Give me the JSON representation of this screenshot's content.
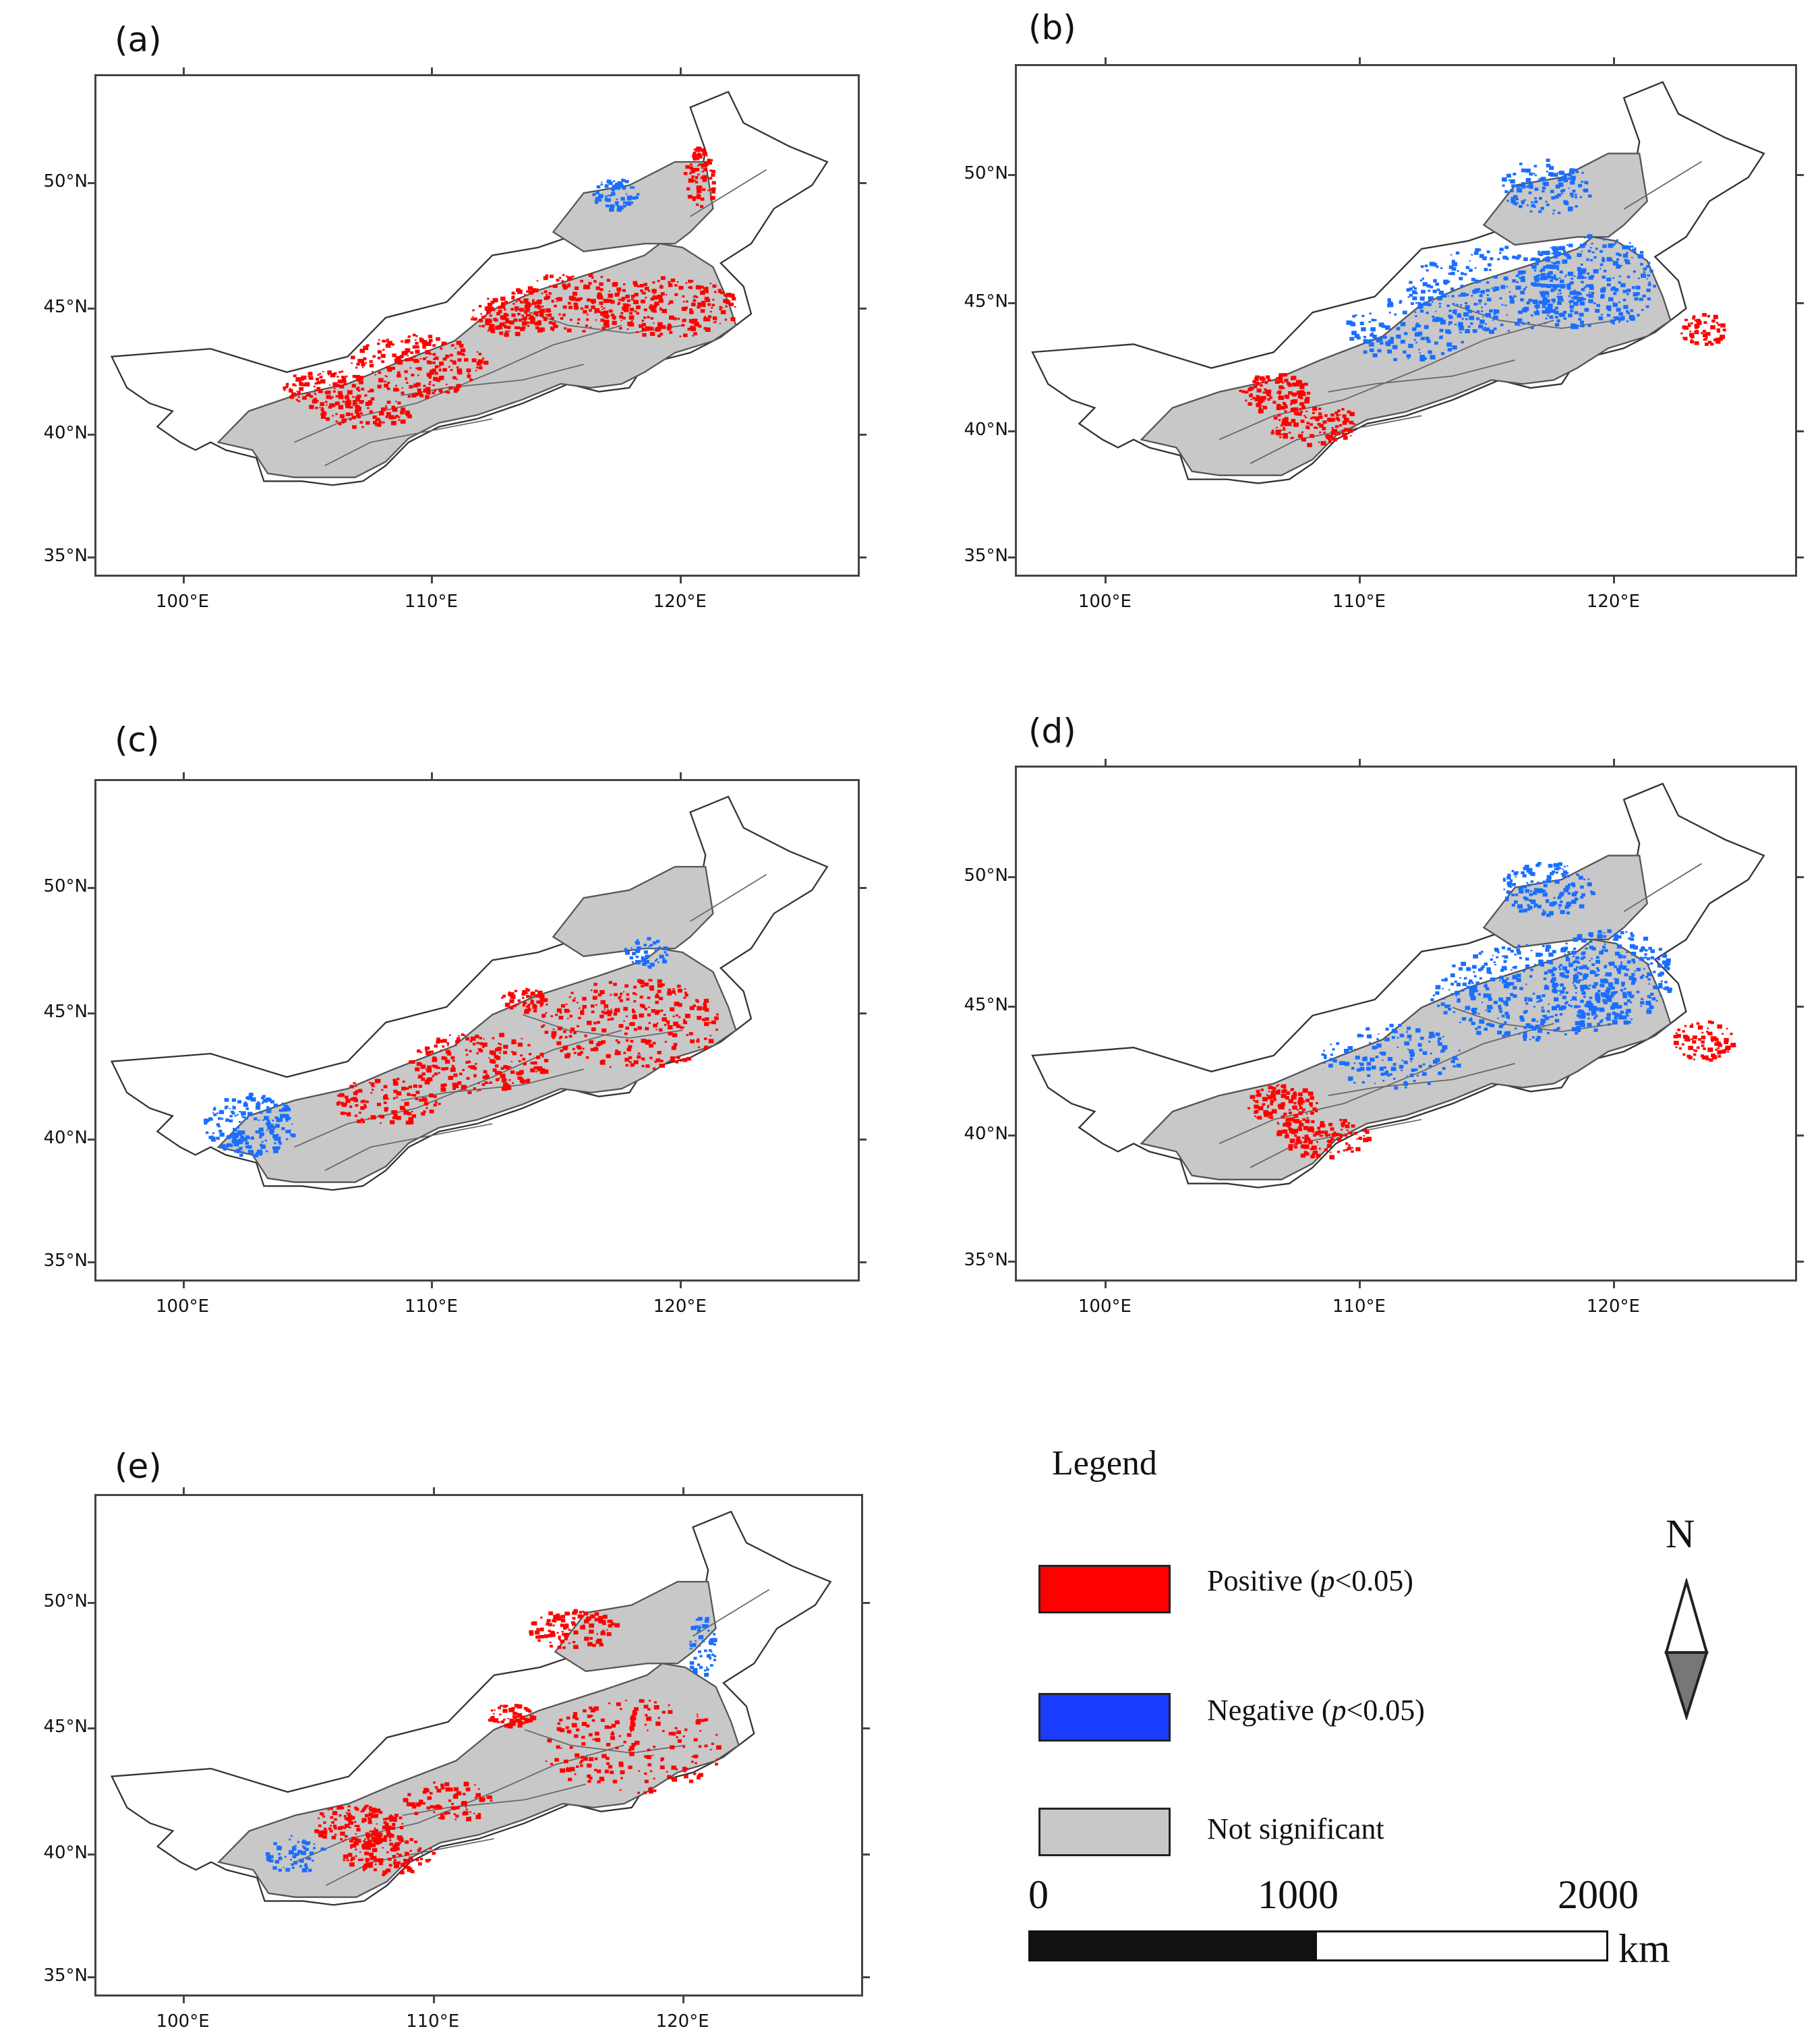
{
  "colors": {
    "positive": "#ff0000",
    "negative": "#1a6eff",
    "not_significant": "#c8c8c8",
    "outline": "#333333",
    "frame": "#444444"
  },
  "axes": {
    "y_labels": [
      "50°N",
      "45°N",
      "40°N",
      "35°N"
    ],
    "x_labels": [
      "100°E",
      "110°E",
      "120°E"
    ]
  },
  "panels": [
    {
      "id": "a",
      "label": "(a)"
    },
    {
      "id": "b",
      "label": "(b)"
    },
    {
      "id": "c",
      "label": "(c)"
    },
    {
      "id": "d",
      "label": "(d)"
    },
    {
      "id": "e",
      "label": "(e)"
    }
  ],
  "legend": {
    "title": "Legend",
    "items": [
      {
        "key": "positive",
        "label_prefix": "Positive (",
        "label_italic": "p",
        "label_suffix": "<0.05)"
      },
      {
        "key": "negative",
        "label_prefix": "Negative (",
        "label_italic": "p",
        "label_suffix": "<0.05)"
      },
      {
        "key": "not_significant",
        "label_prefix": "Not significant",
        "label_italic": "",
        "label_suffix": ""
      }
    ]
  },
  "north_arrow": {
    "label": "N"
  },
  "scale_bar": {
    "ticks": [
      "0",
      "1000",
      "2000"
    ],
    "unit": "km"
  }
}
